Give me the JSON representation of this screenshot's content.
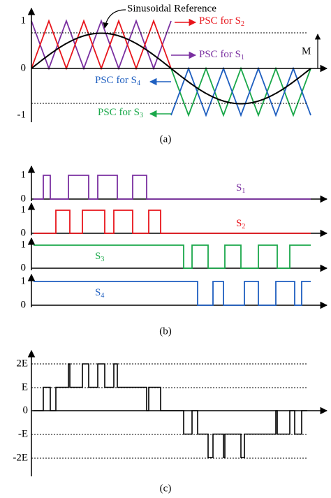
{
  "panel_a": {
    "sinusoidal_reference": "Sinusoidal Reference",
    "y_labels": [
      "1",
      "0",
      "-1"
    ],
    "m_label": "M",
    "psc_labels": [
      {
        "text": "PSC for S",
        "sub": "2"
      },
      {
        "text": "PSC for S",
        "sub": "1"
      },
      {
        "text": "PSC for S",
        "sub": "4"
      },
      {
        "text": "PSC for S",
        "sub": "3"
      }
    ],
    "caption": "(a)"
  },
  "panel_b": {
    "rows": [
      {
        "label": "S",
        "sub": "1",
        "high": "1",
        "low": "0"
      },
      {
        "label": "S",
        "sub": "2",
        "high": "1",
        "low": "0"
      },
      {
        "label": "S",
        "sub": "3",
        "high": "1",
        "low": "0"
      },
      {
        "label": "S",
        "sub": "4",
        "high": "1",
        "low": "0"
      }
    ],
    "caption": "(b)"
  },
  "panel_c": {
    "y_labels": [
      "2E",
      "E",
      "0",
      "-E",
      "-2E"
    ],
    "caption": "(c)"
  }
}
